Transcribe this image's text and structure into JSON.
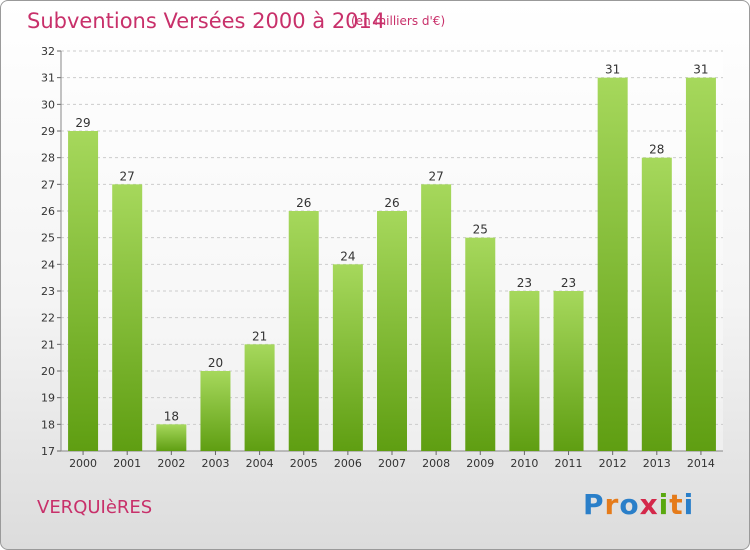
{
  "page": {
    "title": "Subventions Versées 2000 à 2014",
    "unit": "(en milliers d'€)",
    "commune": "VERQUIèRES",
    "logo": "Proxiti"
  },
  "colors": {
    "title": "#c8306a",
    "bar_light": "#a6d85c",
    "bar_dark": "#5f9e12",
    "grid": "#cccccc",
    "logo_letters": [
      "#2a7fc9",
      "#e57b1a",
      "#2a7fc9",
      "#d4284a",
      "#5aa80f",
      "#e57b1a",
      "#2a7fc9"
    ]
  },
  "chart_data": {
    "type": "bar",
    "title": "Subventions Versées 2000 à 2014",
    "subtitle": "(en milliers d'€)",
    "categories": [
      "2000",
      "2001",
      "2002",
      "2003",
      "2004",
      "2005",
      "2006",
      "2007",
      "2008",
      "2009",
      "2010",
      "2011",
      "2012",
      "2013",
      "2014"
    ],
    "values": [
      29,
      27,
      18,
      20,
      21,
      26,
      24,
      26,
      27,
      25,
      23,
      23,
      31,
      28,
      31
    ],
    "ylim": [
      17,
      32
    ],
    "yticks": [
      17,
      18,
      19,
      20,
      21,
      22,
      23,
      24,
      25,
      26,
      27,
      28,
      29,
      30,
      31,
      32
    ],
    "grid": true,
    "legend": "none"
  }
}
